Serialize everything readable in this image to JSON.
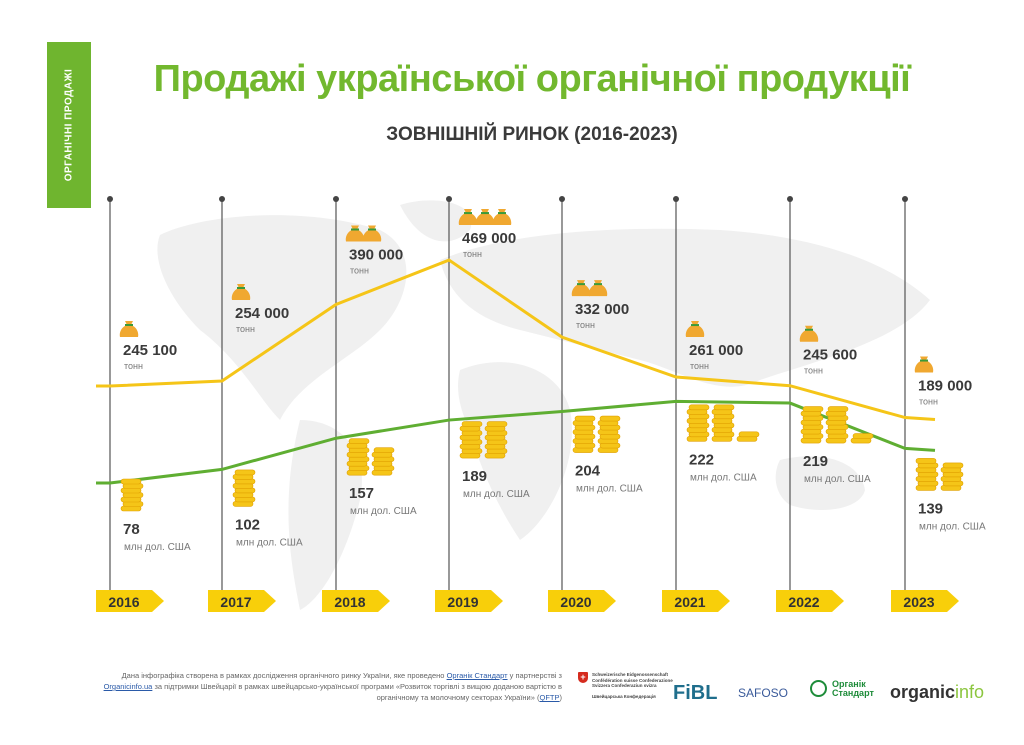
{
  "sidebar_tag": "ОРГАНІЧНІ ПРОДАЖІ",
  "header": {
    "title": "Продажі української органічної продукції",
    "subtitle": "ЗОВНІШНІЙ РИНОК (2016-2023)"
  },
  "chart_data": {
    "type": "line",
    "title": "Продажі української органічної продукції",
    "subtitle": "ЗОВНІШНІЙ РИНОК (2016-2023)",
    "categories": [
      "2016",
      "2017",
      "2018",
      "2019",
      "2020",
      "2021",
      "2022",
      "2023"
    ],
    "series": [
      {
        "key": "volume",
        "unit": "тонн",
        "color": "#f5c518",
        "values": [
          245100,
          254000,
          390000,
          469000,
          332000,
          261000,
          245600,
          189000
        ],
        "labels": [
          "245 100",
          "254 000",
          "390 000",
          "469 000",
          "332 000",
          "261 000",
          "245 600",
          "189 000"
        ],
        "bag_icons": [
          1,
          1,
          2,
          3,
          2,
          1,
          1,
          1
        ]
      },
      {
        "key": "value",
        "unit": "млн дол. США",
        "color": "#5fae32",
        "values": [
          78,
          102,
          157,
          189,
          204,
          222,
          219,
          139
        ],
        "labels": [
          "78",
          "102",
          "157",
          "189",
          "204",
          "222",
          "219",
          "139"
        ],
        "coin_stacks": [
          1,
          1,
          2,
          2,
          2,
          3,
          3,
          2
        ]
      }
    ],
    "grid": false,
    "background": "world map"
  },
  "footer": {
    "note_1": "Дана інфографіка створена в рамках дослідження органічного ринку України, яке проведено ",
    "link_1": "Органік Стандарт",
    "note_2": " у партнерстві з ",
    "link_2": "Organicinfo.ua",
    "note_3": " за підтримки Швейцарії в рамках швейцарсько-української програми «Розвиток торгівлі з вищою доданою вартістю в органічному та молочному секторах України» (",
    "link_3": "QFTP",
    "note_4": ")",
    "logos": {
      "swiss": "Schweizerische Eidgenossenschaft Confédération suisse Confederazione Svizzera Confederaziun svizra",
      "swiss_sub": "Швейцарська Конфедерація",
      "fibl": "FiBL",
      "safoso": "SAFOSO",
      "organic_standard_1": "Органік",
      "organic_standard_2": "Стандарт",
      "organicinfo_1": "organic",
      "organicinfo_2": "info"
    }
  }
}
